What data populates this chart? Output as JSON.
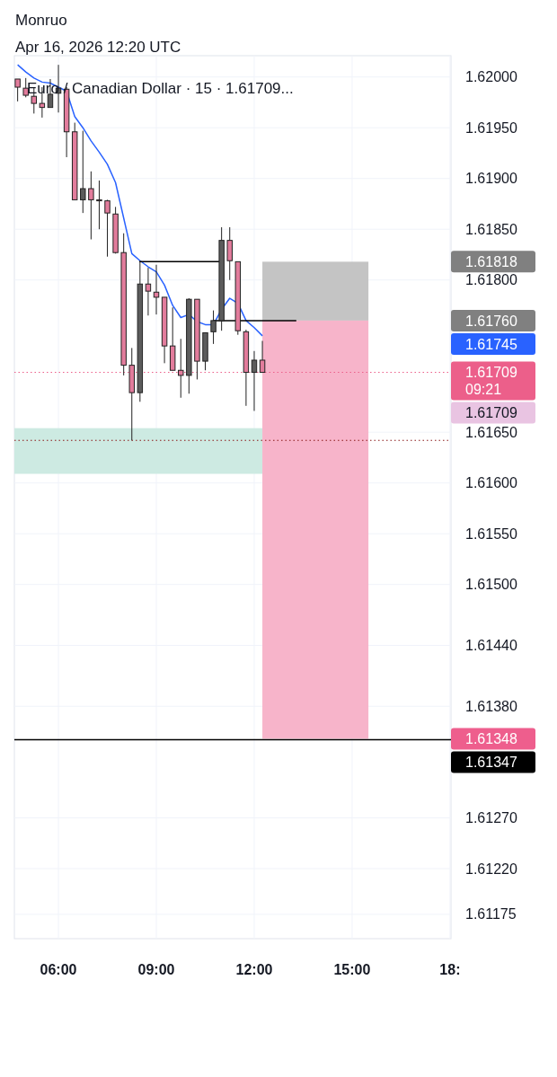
{
  "chart_data": {
    "type": "candlestick",
    "title": "Monruo",
    "subtitle": "Apr 16, 2026 12:20 UTC",
    "x": [
      4.75,
      5,
      5.25,
      5.5,
      5.75,
      6,
      6.25,
      6.5,
      6.75,
      7,
      7.25,
      7.5,
      7.75,
      8,
      8.25,
      8.5,
      8.75,
      9,
      9.25,
      9.5,
      9.75,
      10,
      10.25,
      10.5,
      10.75,
      11,
      11.25,
      11.5,
      11.75,
      12,
      12.25
    ],
    "xlim": [
      4.65,
      18.03
    ],
    "xticks": [
      {
        "value": 6,
        "label": "06:00"
      },
      {
        "value": 9,
        "label": "09:00"
      },
      {
        "value": 12,
        "label": "12:00"
      },
      {
        "value": 15,
        "label": "15:00"
      },
      {
        "value": 18,
        "label": "18:"
      }
    ],
    "ylim": [
      1.61151,
      1.62021
    ],
    "yticks": [
      {
        "value": 1.62,
        "label": "1.62000"
      },
      {
        "value": 1.6195,
        "label": "1.61950"
      },
      {
        "value": 1.619,
        "label": "1.61900"
      },
      {
        "value": 1.6185,
        "label": "1.61850"
      },
      {
        "value": 1.618,
        "label": "1.61800"
      },
      {
        "value": 1.6165,
        "label": "1.61650"
      },
      {
        "value": 1.616,
        "label": "1.61600"
      },
      {
        "value": 1.6155,
        "label": "1.61550"
      },
      {
        "value": 1.615,
        "label": "1.61500"
      },
      {
        "value": 1.6144,
        "label": "1.61440"
      },
      {
        "value": 1.6138,
        "label": "1.61380"
      },
      {
        "value": 1.6127,
        "label": "1.61270"
      },
      {
        "value": 1.6122,
        "label": "1.61220"
      },
      {
        "value": 1.61175,
        "label": "1.61175"
      }
    ],
    "grid": true,
    "legend": false,
    "series": [
      {
        "type": "line",
        "color": "#2962ff",
        "values": [
          1.62012,
          1.62005,
          1.61999,
          1.61995,
          1.61994,
          1.6199,
          1.61986,
          1.61961,
          1.6195,
          1.61937,
          1.61926,
          1.61914,
          1.61896,
          1.61861,
          1.61826,
          1.61819,
          1.61813,
          1.61808,
          1.61795,
          1.61775,
          1.61763,
          1.61766,
          1.61759,
          1.61756,
          1.61756,
          1.61771,
          1.61782,
          1.61777,
          1.6176,
          1.61753,
          1.61745
        ]
      },
      {
        "type": "line",
        "color": "#000000",
        "x": [
          8.48,
          10.95
        ],
        "values": [
          1.61818,
          1.61818
        ]
      },
      {
        "type": "line",
        "color": "#000000",
        "x": [
          10.73,
          13.29
        ],
        "values": [
          1.6176,
          1.6176
        ]
      },
      {
        "ohlc": [
          [
            1.61998,
            1.61998,
            1.61976,
            1.6199
          ],
          [
            1.61989,
            1.61999,
            1.6198,
            1.61982
          ],
          [
            1.61981,
            1.6199,
            1.61964,
            1.61974
          ],
          [
            1.61974,
            1.6199,
            1.6196,
            1.6197
          ],
          [
            1.6197,
            1.61998,
            1.6197,
            1.61983
          ],
          [
            1.61984,
            1.62012,
            1.61965,
            1.61989
          ],
          [
            1.61988,
            1.6199,
            1.61921,
            1.61946
          ],
          [
            1.61946,
            1.61955,
            1.61879,
            1.61879
          ],
          [
            1.61879,
            1.61947,
            1.61866,
            1.6189
          ],
          [
            1.6189,
            1.61907,
            1.6184,
            1.61879
          ],
          [
            1.61879,
            1.61898,
            1.6185,
            1.61878
          ],
          [
            1.61878,
            1.61879,
            1.61823,
            1.61866
          ],
          [
            1.61865,
            1.61872,
            1.61826,
            1.61827
          ],
          [
            1.61827,
            1.61846,
            1.61706,
            1.61716
          ],
          [
            1.61716,
            1.61733,
            1.61642,
            1.61689
          ],
          [
            1.61689,
            1.61819,
            1.6168,
            1.61796
          ],
          [
            1.61796,
            1.61812,
            1.61765,
            1.61789
          ],
          [
            1.61788,
            1.61815,
            1.61766,
            1.61783
          ],
          [
            1.61783,
            1.61783,
            1.61718,
            1.61735
          ],
          [
            1.61735,
            1.61773,
            1.61711,
            1.61711
          ],
          [
            1.61711,
            1.61742,
            1.61684,
            1.61706
          ],
          [
            1.61706,
            1.61782,
            1.61688,
            1.61781
          ],
          [
            1.61781,
            1.61781,
            1.61702,
            1.6172
          ],
          [
            1.6172,
            1.61748,
            1.61711,
            1.61748
          ],
          [
            1.61749,
            1.6177,
            1.61737,
            1.6176
          ],
          [
            1.6176,
            1.61852,
            1.6175,
            1.61839
          ],
          [
            1.61839,
            1.61852,
            1.618,
            1.61819
          ],
          [
            1.61818,
            1.61818,
            1.61746,
            1.6175
          ],
          [
            1.61749,
            1.61751,
            1.61676,
            1.61709
          ],
          [
            1.61709,
            1.6173,
            1.61671,
            1.61721
          ],
          [
            1.61721,
            1.6174,
            1.61709,
            1.61709
          ]
        ],
        "colors": [
          "#e27c9c",
          "#e27c9c",
          "#e27c9c",
          "#e27c9c",
          "#5c5c5c",
          "#5c5c5c",
          "#e27c9c",
          "#e27c9c",
          "#5c5c5c",
          "#e27c9c",
          "#e27c9c",
          "#e27c9c",
          "#e27c9c",
          "#e27c9c",
          "#e27c9c",
          "#5c5c5c",
          "#e27c9c",
          "#e27c9c",
          "#e27c9c",
          "#e27c9c",
          "#e27c9c",
          "#5c5c5c",
          "#e27c9c",
          "#5c5c5c",
          "#5c5c5c",
          "#5c5c5c",
          "#e27c9c",
          "#e27c9c",
          "#e27c9c",
          "#5c5c5c",
          "#e27c9c"
        ],
        "value_labels": [
          null,
          null,
          null,
          null,
          null,
          null,
          null,
          null,
          null,
          null,
          null,
          null,
          null,
          null,
          null,
          null,
          null,
          null,
          null,
          null,
          null,
          null,
          null,
          null,
          null,
          null,
          null,
          null,
          null,
          null,
          "1.61709"
        ]
      }
    ],
    "bands": [
      {
        "axis": "y",
        "from": 1.61609,
        "to": 1.61654,
        "color": "#cdeae2"
      },
      {
        "axis": "y",
        "from": 1.6176,
        "to": 1.61818,
        "color": "#c4c4c4"
      },
      {
        "axis": "y",
        "from": 1.6176,
        "to": 1.61348,
        "color": "#f7b4ca"
      }
    ],
    "ref_lines": [
      {
        "axis": "y",
        "value": 1.61347,
        "color": "#000000",
        "line_style": "solid",
        "label": "1.61347"
      },
      {
        "axis": "y",
        "value": 1.61709,
        "color": "#ec5f8a",
        "line_style": "dotted",
        "label": "1.61709\n09:21"
      },
      {
        "axis": "y",
        "value": 1.61642,
        "color": "#8b1a1a",
        "line_style": "dotted"
      }
    ],
    "annotations": [
      "Euro / Canadian Dollar · 15 · 1.61709...",
      "1.61818",
      "1.61760",
      "1.61745",
      "1.61348"
    ]
  }
}
